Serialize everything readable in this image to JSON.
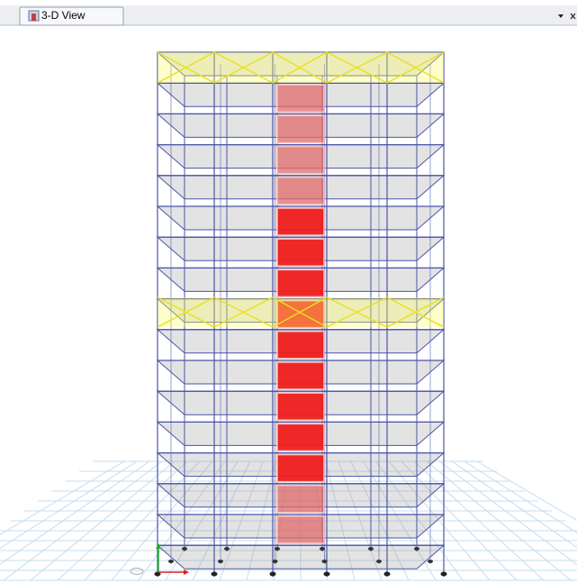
{
  "tab": {
    "title": "3-D View"
  }
}
